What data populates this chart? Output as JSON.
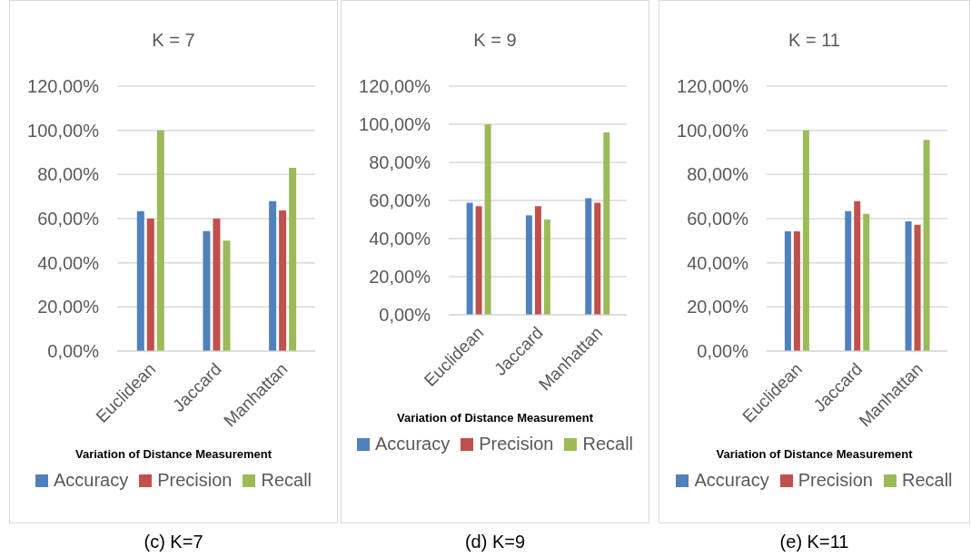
{
  "chart_data": [
    {
      "type": "bar",
      "title": "K = 7",
      "xlabel": "Variation of Distance Measurement",
      "categories": [
        "Euclidean",
        "Jaccard",
        "Manhattan"
      ],
      "series": [
        {
          "name": "Accuracy",
          "color": "#4f81bd",
          "values": [
            63.4,
            54.3,
            67.9
          ]
        },
        {
          "name": "Precision",
          "color": "#c0504d",
          "values": [
            60,
            60,
            63.7
          ]
        },
        {
          "name": "Recall",
          "color": "#9bbb59",
          "values": [
            100,
            50,
            83
          ]
        }
      ],
      "ylim": [
        0,
        120
      ],
      "yticks": [
        {
          "value": 0,
          "label": "0,00%"
        },
        {
          "value": 20,
          "label": "20,00%"
        },
        {
          "value": 40,
          "label": "40,00%"
        },
        {
          "value": 60,
          "label": "60,00%"
        },
        {
          "value": 80,
          "label": "80,00%"
        },
        {
          "value": 100,
          "label": "100,00%"
        },
        {
          "value": 120,
          "label": "120,00%"
        }
      ],
      "grid": "y",
      "legend": "bottom",
      "annotations": [
        "(c) K=7"
      ]
    },
    {
      "type": "bar",
      "title": "K = 9",
      "xlabel": "Variation of Distance Measurement",
      "categories": [
        "Euclidean",
        "Jaccard",
        "Manhattan"
      ],
      "series": [
        {
          "name": "Accuracy",
          "color": "#4f81bd",
          "values": [
            58.8,
            52.2,
            61.2
          ]
        },
        {
          "name": "Precision",
          "color": "#c0504d",
          "values": [
            57,
            57,
            58.8
          ]
        },
        {
          "name": "Recall",
          "color": "#9bbb59",
          "values": [
            100,
            50,
            95.7
          ]
        }
      ],
      "ylim": [
        0,
        120
      ],
      "yticks": [
        {
          "value": 0,
          "label": "0,00%"
        },
        {
          "value": 20,
          "label": "20,00%"
        },
        {
          "value": 40,
          "label": "40,00%"
        },
        {
          "value": 60,
          "label": "60,00%"
        },
        {
          "value": 80,
          "label": "80,00%"
        },
        {
          "value": 100,
          "label": "100,00%"
        },
        {
          "value": 120,
          "label": "120,00%"
        }
      ],
      "grid": "y",
      "legend": "bottom",
      "annotations": [
        "(d) K=9"
      ]
    },
    {
      "type": "bar",
      "title": "K = 11",
      "xlabel": "Variation of Distance Measurement",
      "categories": [
        "Euclidean",
        "Jaccard",
        "Manhattan"
      ],
      "series": [
        {
          "name": "Accuracy",
          "color": "#4f81bd",
          "values": [
            54.2,
            63.4,
            58.8
          ]
        },
        {
          "name": "Precision",
          "color": "#c0504d",
          "values": [
            54.2,
            67.9,
            57.2
          ]
        },
        {
          "name": "Recall",
          "color": "#9bbb59",
          "values": [
            100,
            62.2,
            95.7
          ]
        }
      ],
      "ylim": [
        0,
        120
      ],
      "yticks": [
        {
          "value": 0,
          "label": "0,00%"
        },
        {
          "value": 20,
          "label": "20,00%"
        },
        {
          "value": 40,
          "label": "40,00%"
        },
        {
          "value": 60,
          "label": "60,00%"
        },
        {
          "value": 80,
          "label": "80,00%"
        },
        {
          "value": 100,
          "label": "100,00%"
        },
        {
          "value": 120,
          "label": "120,00%"
        }
      ],
      "grid": "y",
      "legend": "bottom",
      "annotations": [
        "(e) K=11"
      ]
    }
  ]
}
